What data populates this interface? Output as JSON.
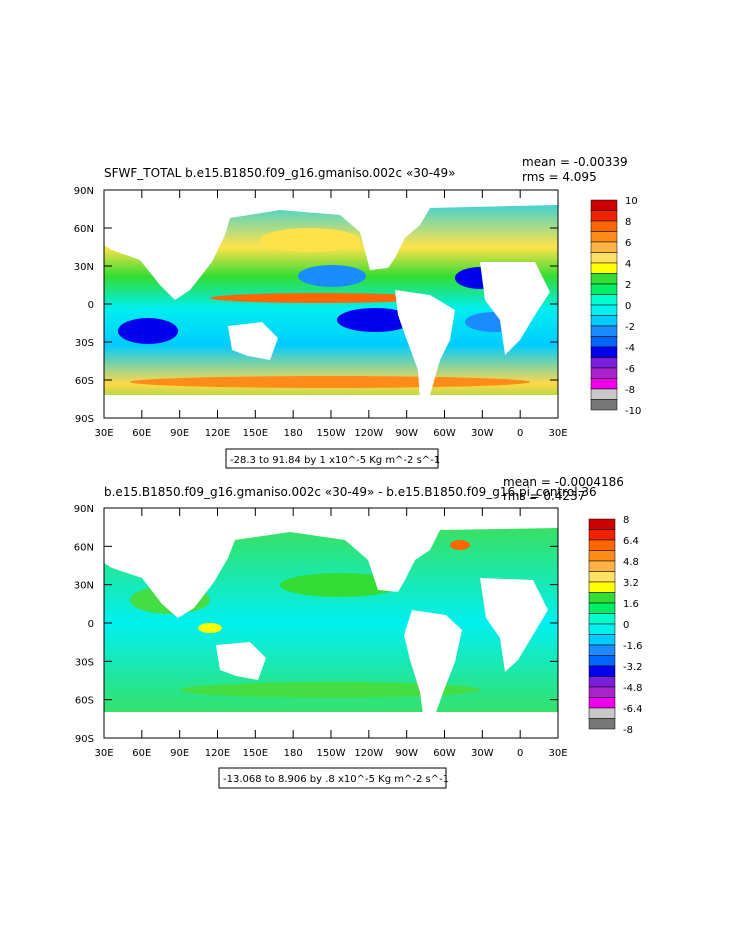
{
  "chart_data": [
    {
      "type": "heatmap",
      "title": "SFWF_TOTAL b.e15.B1850.f09_g16.gmaniso.002c «30-49»",
      "stats": {
        "mean": "mean = -0.00339",
        "rms": "rms = 4.095"
      },
      "x_ticks": [
        "30E",
        "60E",
        "90E",
        "120E",
        "150E",
        "180",
        "150W",
        "120W",
        "90W",
        "60W",
        "30W",
        "0",
        "30E"
      ],
      "y_ticks": [
        "90N",
        "60N",
        "30N",
        "0",
        "30S",
        "60S",
        "90S"
      ],
      "range_note": "-28.3 to 91.84 by 1 x10^-5 Kg m^-2 s^-1",
      "colorbar": {
        "labels": [
          "10",
          "8",
          "6",
          "4",
          "2",
          "0",
          "-2",
          "-4",
          "-6",
          "-8",
          "-10"
        ],
        "colors": [
          "#cc0000",
          "#ee2200",
          "#ff6600",
          "#ff8c1a",
          "#ffb347",
          "#ffe066",
          "#ffff00",
          "#33dd33",
          "#00ee66",
          "#00ffcc",
          "#00f0f0",
          "#00ccff",
          "#1a8cff",
          "#0066ff",
          "#0000ee",
          "#7a1fd9",
          "#aa22cc",
          "#ee00ee",
          "#c8c8c8",
          "#777777"
        ]
      }
    },
    {
      "type": "heatmap",
      "title": "b.e15.B1850.f09_g16.gmaniso.002c «30-49» - b.e15.B1850.f09_g16.pi_control.36",
      "stats": {
        "mean": "mean = -0.0004186",
        "rms": "rms = 0.4237"
      },
      "x_ticks": [
        "30E",
        "60E",
        "90E",
        "120E",
        "150E",
        "180",
        "150W",
        "120W",
        "90W",
        "60W",
        "30W",
        "0",
        "30E"
      ],
      "y_ticks": [
        "90N",
        "60N",
        "30N",
        "0",
        "30S",
        "60S",
        "90S"
      ],
      "range_note": "-13.068 to 8.906 by .8 x10^-5 Kg m^-2 s^-1",
      "colorbar": {
        "labels": [
          "8",
          "6.4",
          "4.8",
          "3.2",
          "1.6",
          "0",
          "-1.6",
          "-3.2",
          "-4.8",
          "-6.4",
          "-8"
        ],
        "colors": [
          "#cc0000",
          "#ee2200",
          "#ff6600",
          "#ff8c1a",
          "#ffb347",
          "#ffe066",
          "#ffff00",
          "#33dd33",
          "#00ee66",
          "#00ffcc",
          "#00f0f0",
          "#00ccff",
          "#1a8cff",
          "#0066ff",
          "#0000ee",
          "#7a1fd9",
          "#aa22cc",
          "#ee00ee",
          "#c8c8c8",
          "#777777"
        ]
      }
    }
  ]
}
